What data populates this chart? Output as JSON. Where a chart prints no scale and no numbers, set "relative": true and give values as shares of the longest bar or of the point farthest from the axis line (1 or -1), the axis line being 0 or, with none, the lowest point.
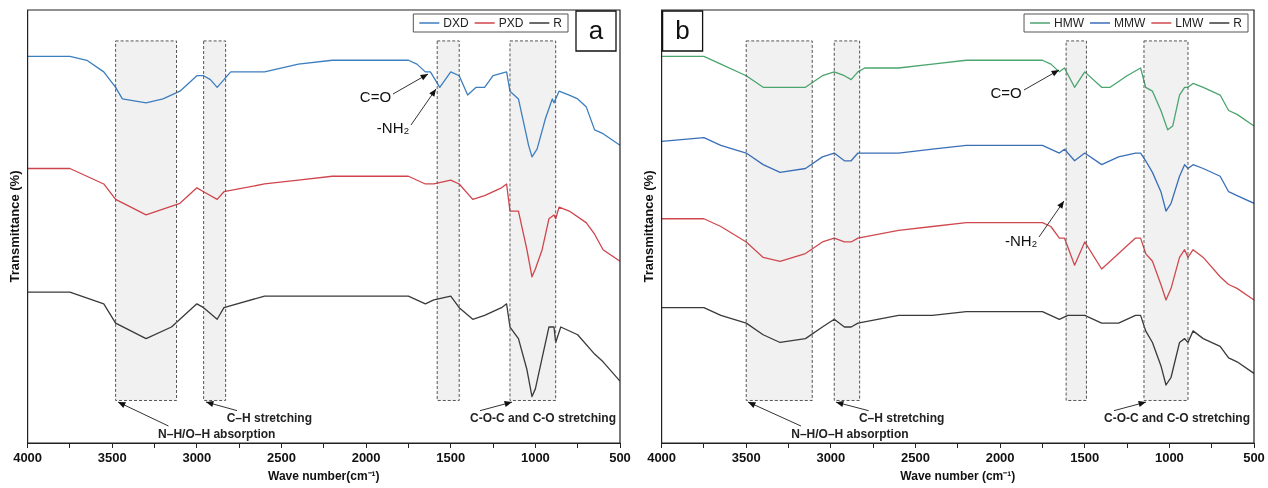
{
  "chart_data": [
    {
      "type": "line",
      "title": "a",
      "xlabel": "Wave number(cm⁻¹)",
      "ylabel": "Transmittance (%)",
      "relative": true,
      "legend": "top right",
      "xlim": [
        4000,
        500
      ],
      "xticks": [
        4000,
        {
          "value": 3750,
          "label": null
        },
        3500,
        {
          "value": 3250,
          "label": null
        },
        3000,
        {
          "value": 2750,
          "label": null
        },
        2500,
        {
          "value": 2250,
          "label": null
        },
        2000,
        {
          "value": 1750,
          "label": null
        },
        1500,
        {
          "value": 1250,
          "label": null
        },
        1000,
        {
          "value": 750,
          "label": null
        },
        500
      ],
      "series": [
        {
          "name": "DXD",
          "color": "#3d7ebf",
          "x": [
            4000,
            3750,
            3650,
            3550,
            3480,
            3440,
            3300,
            3200,
            3100,
            3000,
            2960,
            2920,
            2880,
            2840,
            2800,
            2600,
            2400,
            2200,
            2000,
            1750,
            1700,
            1650,
            1620,
            1565,
            1500,
            1450,
            1400,
            1350,
            1300,
            1250,
            1170,
            1150,
            1100,
            1060,
            1040,
            1020,
            990,
            940,
            900,
            890,
            860,
            800,
            750,
            700,
            650,
            600,
            500
          ],
          "values": [
            1.0,
            1.0,
            0.99,
            0.96,
            0.92,
            0.89,
            0.88,
            0.89,
            0.91,
            0.95,
            0.95,
            0.94,
            0.92,
            0.94,
            0.96,
            0.96,
            0.98,
            0.99,
            0.99,
            0.99,
            0.98,
            0.96,
            0.96,
            0.92,
            0.96,
            0.95,
            0.9,
            0.92,
            0.92,
            0.95,
            0.96,
            0.91,
            0.89,
            0.81,
            0.77,
            0.74,
            0.76,
            0.84,
            0.89,
            0.88,
            0.91,
            0.9,
            0.89,
            0.87,
            0.81,
            0.8,
            0.77
          ]
        },
        {
          "name": "PXD",
          "color": "#d0454d",
          "x": [
            4000,
            3750,
            3550,
            3480,
            3300,
            3100,
            3000,
            2960,
            2880,
            2840,
            2600,
            2400,
            2200,
            2000,
            1750,
            1650,
            1600,
            1500,
            1450,
            1370,
            1300,
            1200,
            1170,
            1150,
            1100,
            1050,
            1020,
            1000,
            960,
            920,
            890,
            880,
            860,
            800,
            700,
            650,
            600,
            500
          ],
          "values": [
            0.71,
            0.71,
            0.67,
            0.63,
            0.59,
            0.62,
            0.66,
            0.65,
            0.63,
            0.65,
            0.67,
            0.68,
            0.69,
            0.69,
            0.69,
            0.67,
            0.67,
            0.68,
            0.67,
            0.63,
            0.64,
            0.66,
            0.67,
            0.6,
            0.6,
            0.5,
            0.43,
            0.45,
            0.5,
            0.58,
            0.59,
            0.58,
            0.61,
            0.6,
            0.57,
            0.54,
            0.5,
            0.47
          ]
        },
        {
          "name": "R",
          "color": "#3a3a3a",
          "x": [
            4000,
            3750,
            3550,
            3480,
            3300,
            3150,
            3000,
            2960,
            2880,
            2840,
            2600,
            2400,
            2200,
            2000,
            1750,
            1650,
            1600,
            1500,
            1450,
            1370,
            1300,
            1200,
            1170,
            1150,
            1100,
            1050,
            1020,
            1000,
            960,
            920,
            890,
            880,
            850,
            750,
            650,
            600,
            500
          ],
          "values": [
            0.39,
            0.39,
            0.36,
            0.31,
            0.27,
            0.3,
            0.36,
            0.35,
            0.32,
            0.35,
            0.38,
            0.38,
            0.38,
            0.38,
            0.38,
            0.36,
            0.37,
            0.38,
            0.35,
            0.32,
            0.33,
            0.35,
            0.36,
            0.3,
            0.27,
            0.19,
            0.12,
            0.14,
            0.22,
            0.3,
            0.3,
            0.26,
            0.3,
            0.28,
            0.23,
            0.21,
            0.16
          ]
        }
      ],
      "bands": [
        {
          "axis": "x",
          "from": 3480,
          "to": 3120,
          "label": "N–H/O–H absorption"
        },
        {
          "axis": "x",
          "from": 2960,
          "to": 2830,
          "label": "C–H stretching"
        },
        {
          "axis": "x",
          "from": 1580,
          "to": 1450,
          "label": null
        },
        {
          "axis": "x",
          "from": 1150,
          "to": 880,
          "label": "C-O-C and C-O stretching"
        }
      ],
      "annotations": [
        {
          "text": "C=O",
          "x": 1620,
          "y": 0.96
        },
        {
          "text": "-NH₂",
          "x": 1575,
          "y": 0.92
        }
      ]
    },
    {
      "type": "line",
      "title": "b",
      "xlabel": "Wave number (cm⁻¹)",
      "ylabel": "Transmittance (%)",
      "relative": true,
      "legend": "top right",
      "xlim": [
        4000,
        500
      ],
      "xticks": [
        4000,
        {
          "value": 3750,
          "label": null
        },
        3500,
        {
          "value": 3250,
          "label": null
        },
        3000,
        {
          "value": 2750,
          "label": null
        },
        2500,
        {
          "value": 2250,
          "label": null
        },
        2000,
        {
          "value": 1750,
          "label": null
        },
        1500,
        {
          "value": 1250,
          "label": null
        },
        1000,
        {
          "value": 750,
          "label": null
        },
        500
      ],
      "series": [
        {
          "name": "HMW",
          "color": "#4aa56e",
          "x": [
            4000,
            3750,
            3650,
            3500,
            3400,
            3300,
            3150,
            3050,
            2980,
            2920,
            2880,
            2840,
            2800,
            2600,
            2400,
            2200,
            2000,
            1750,
            1700,
            1650,
            1620,
            1560,
            1500,
            1400,
            1350,
            1250,
            1170,
            1140,
            1100,
            1050,
            1010,
            980,
            940,
            910,
            890,
            860,
            800,
            700,
            650,
            600,
            500
          ],
          "values": [
            1.0,
            1.0,
            0.98,
            0.95,
            0.92,
            0.92,
            0.92,
            0.95,
            0.96,
            0.95,
            0.94,
            0.96,
            0.97,
            0.97,
            0.98,
            0.99,
            0.99,
            0.99,
            0.98,
            0.96,
            0.97,
            0.92,
            0.96,
            0.92,
            0.92,
            0.95,
            0.97,
            0.92,
            0.91,
            0.86,
            0.81,
            0.82,
            0.9,
            0.92,
            0.92,
            0.93,
            0.92,
            0.9,
            0.86,
            0.85,
            0.82
          ]
        },
        {
          "name": "MMW",
          "color": "#3a6fb8",
          "x": [
            4000,
            3750,
            3650,
            3500,
            3400,
            3300,
            3150,
            3050,
            2980,
            2920,
            2880,
            2840,
            2600,
            2400,
            2200,
            2000,
            1750,
            1650,
            1620,
            1560,
            1500,
            1400,
            1300,
            1200,
            1170,
            1140,
            1100,
            1050,
            1020,
            990,
            940,
            910,
            890,
            860,
            800,
            700,
            650,
            600,
            500
          ],
          "values": [
            0.78,
            0.79,
            0.77,
            0.75,
            0.72,
            0.7,
            0.71,
            0.74,
            0.75,
            0.73,
            0.73,
            0.75,
            0.75,
            0.76,
            0.77,
            0.77,
            0.77,
            0.75,
            0.76,
            0.73,
            0.75,
            0.72,
            0.74,
            0.75,
            0.75,
            0.73,
            0.7,
            0.65,
            0.6,
            0.62,
            0.69,
            0.72,
            0.71,
            0.72,
            0.71,
            0.69,
            0.65,
            0.64,
            0.62
          ]
        },
        {
          "name": "LMW",
          "color": "#cf4a4f",
          "x": [
            4000,
            3750,
            3650,
            3500,
            3400,
            3300,
            3150,
            3050,
            2980,
            2920,
            2880,
            2840,
            2600,
            2400,
            2200,
            2000,
            1750,
            1700,
            1650,
            1620,
            1560,
            1500,
            1400,
            1300,
            1200,
            1170,
            1140,
            1100,
            1050,
            1020,
            990,
            940,
            910,
            890,
            860,
            800,
            700,
            650,
            600,
            500
          ],
          "values": [
            0.58,
            0.58,
            0.56,
            0.52,
            0.48,
            0.47,
            0.49,
            0.52,
            0.53,
            0.52,
            0.52,
            0.53,
            0.55,
            0.56,
            0.57,
            0.57,
            0.57,
            0.56,
            0.53,
            0.53,
            0.46,
            0.52,
            0.45,
            0.49,
            0.53,
            0.53,
            0.49,
            0.47,
            0.41,
            0.37,
            0.4,
            0.48,
            0.5,
            0.48,
            0.5,
            0.48,
            0.43,
            0.41,
            0.4,
            0.37
          ]
        },
        {
          "name": "R",
          "color": "#3a3a3a",
          "x": [
            4000,
            3750,
            3650,
            3500,
            3400,
            3300,
            3150,
            3050,
            2980,
            2920,
            2880,
            2840,
            2600,
            2400,
            2200,
            2000,
            1750,
            1650,
            1600,
            1500,
            1400,
            1300,
            1200,
            1170,
            1140,
            1100,
            1050,
            1020,
            990,
            940,
            910,
            890,
            860,
            800,
            700,
            650,
            600,
            500
          ],
          "values": [
            0.35,
            0.35,
            0.33,
            0.31,
            0.28,
            0.26,
            0.27,
            0.3,
            0.32,
            0.3,
            0.3,
            0.31,
            0.33,
            0.33,
            0.34,
            0.34,
            0.34,
            0.32,
            0.33,
            0.33,
            0.31,
            0.31,
            0.33,
            0.33,
            0.29,
            0.26,
            0.2,
            0.15,
            0.17,
            0.26,
            0.27,
            0.26,
            0.29,
            0.27,
            0.25,
            0.22,
            0.21,
            0.18
          ]
        }
      ],
      "bands": [
        {
          "axis": "x",
          "from": 3500,
          "to": 3110,
          "label": "N–H/O–H absorption"
        },
        {
          "axis": "x",
          "from": 2980,
          "to": 2830,
          "label": "C–H stretching"
        },
        {
          "axis": "x",
          "from": 1610,
          "to": 1490,
          "label": null
        },
        {
          "axis": "x",
          "from": 1150,
          "to": 890,
          "label": "C-O-C and C-O stretching"
        }
      ],
      "annotations": [
        {
          "text": "C=O",
          "x": 1640,
          "y": 0.97
        },
        {
          "text": "-NH₂",
          "x": 1610,
          "y": 0.63
        }
      ]
    }
  ]
}
